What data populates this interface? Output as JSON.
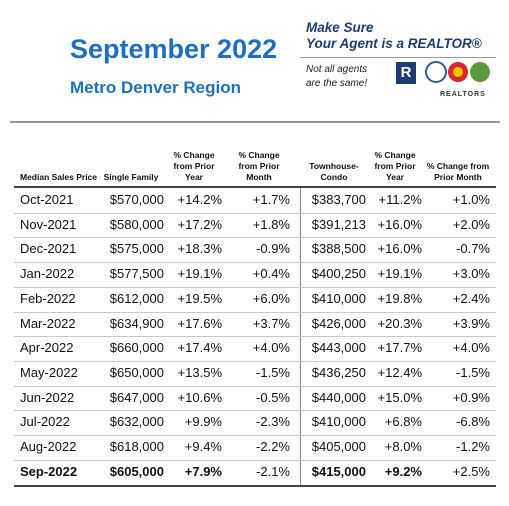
{
  "header": {
    "title": "September 2022",
    "subtitle": "Metro Denver Region"
  },
  "promo": {
    "line1": "Make Sure",
    "line2": "Your Agent is a REALTOR®",
    "note1": "Not all agents",
    "note2": "are the same!",
    "logo_letter": "R",
    "logo_text": "REALTORS"
  },
  "table": {
    "columns": [
      "Median Sales Price",
      "Single Family",
      "% Change from Prior Year",
      "% Change from Prior Month",
      "Townhouse-Condo",
      "% Change from Prior Year",
      "% Change from Prior Month"
    ],
    "rows": [
      [
        "Oct-2021",
        "$570,000",
        "+14.2%",
        "+1.7%",
        "$383,700",
        "+11.2%",
        "+1.0%"
      ],
      [
        "Nov-2021",
        "$580,000",
        "+17.2%",
        "+1.8%",
        "$391,213",
        "+16.0%",
        "+2.0%"
      ],
      [
        "Dec-2021",
        "$575,000",
        "+18.3%",
        "-0.9%",
        "$388,500",
        "+16.0%",
        "-0.7%"
      ],
      [
        "Jan-2022",
        "$577,500",
        "+19.1%",
        "+0.4%",
        "$400,250",
        "+19.1%",
        "+3.0%"
      ],
      [
        "Feb-2022",
        "$612,000",
        "+19.5%",
        "+6.0%",
        "$410,000",
        "+19.8%",
        "+2.4%"
      ],
      [
        "Mar-2022",
        "$634,900",
        "+17.6%",
        "+3.7%",
        "$426,000",
        "+20.3%",
        "+3.9%"
      ],
      [
        "Apr-2022",
        "$660,000",
        "+17.4%",
        "+4.0%",
        "$443,000",
        "+17.7%",
        "+4.0%"
      ],
      [
        "May-2022",
        "$650,000",
        "+13.5%",
        "-1.5%",
        "$436,250",
        "+12.4%",
        "-1.5%"
      ],
      [
        "Jun-2022",
        "$647,000",
        "+10.6%",
        "-0.5%",
        "$440,000",
        "+15.0%",
        "+0.9%"
      ],
      [
        "Jul-2022",
        "$632,000",
        "+9.9%",
        "-2.3%",
        "$410,000",
        "+6.8%",
        "-6.8%"
      ],
      [
        "Aug-2022",
        "$618,000",
        "+9.4%",
        "-2.2%",
        "$405,000",
        "+8.0%",
        "-1.2%"
      ],
      [
        "Sep-2022",
        "$605,000",
        "+7.9%",
        "-2.1%",
        "$415,000",
        "+9.2%",
        "+2.5%"
      ]
    ]
  }
}
